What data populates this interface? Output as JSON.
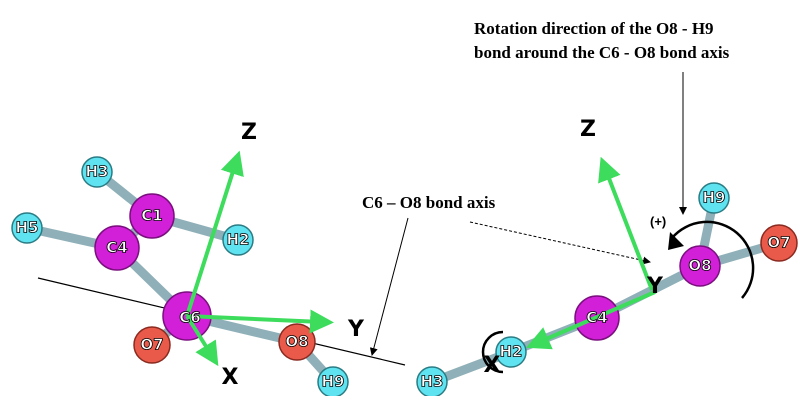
{
  "annotations": {
    "rotation_line1": "Rotation direction of the O8 - H9",
    "rotation_line2": "bond around the C6 - O8 bond axis",
    "bond_axis": "C6 – O8 bond axis",
    "direction": "(+)"
  },
  "left": {
    "atoms": [
      "H3",
      "C1",
      "H5",
      "C4",
      "H2",
      "C6",
      "O7",
      "O8",
      "H9"
    ],
    "axes": [
      "Z",
      "Y",
      "X"
    ]
  },
  "right": {
    "atoms": [
      "H9",
      "O7",
      "O8",
      "C4",
      "H2",
      "H3"
    ],
    "axes": [
      "Z",
      "Y",
      "X"
    ]
  }
}
